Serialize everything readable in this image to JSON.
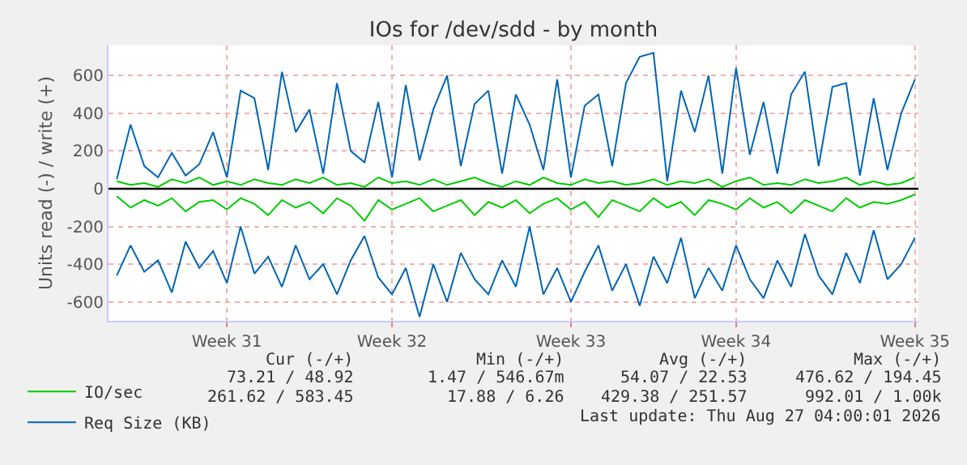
{
  "chart_data": {
    "type": "line",
    "title": "IOs for /dev/sdd - by month",
    "ylabel": "Units read (-) / write (+)",
    "categories": [
      null,
      null,
      null,
      null,
      null,
      null,
      null,
      null,
      "Week 31",
      null,
      null,
      null,
      null,
      null,
      null,
      null,
      null,
      null,
      null,
      null,
      "Week 32",
      null,
      null,
      null,
      null,
      null,
      null,
      null,
      null,
      null,
      null,
      null,
      null,
      "Week 33",
      null,
      null,
      null,
      null,
      null,
      null,
      null,
      null,
      null,
      null,
      null,
      "Week 34",
      null,
      null,
      null,
      null,
      null,
      null,
      null,
      null,
      null,
      null,
      null,
      null,
      "Week 35"
    ],
    "series": [
      {
        "color": "#0066b3",
        "values": [
          -460,
          -300,
          -440,
          -380,
          -550,
          -280,
          -420,
          -330,
          -500,
          -200,
          -450,
          -360,
          -520,
          -300,
          -480,
          -400,
          -560,
          -380,
          -250,
          -470,
          -560,
          -420,
          -680,
          -400,
          -600,
          -340,
          -480,
          -560,
          -380,
          -520,
          -200,
          -560,
          -420,
          -600,
          -440,
          -300,
          -540,
          -400,
          -620,
          -360,
          -500,
          -260,
          -580,
          -420,
          -540,
          -300,
          -480,
          -580,
          -380,
          -520,
          -240,
          -460,
          -560,
          -340,
          -500,
          -220,
          -480,
          -400,
          -260
        ]
      },
      {
        "name": "Req Size (KB)",
        "color": "#0066b3",
        "values": [
          50,
          340,
          120,
          60,
          190,
          70,
          130,
          300,
          60,
          520,
          480,
          100,
          620,
          300,
          420,
          80,
          560,
          200,
          140,
          460,
          60,
          550,
          150,
          420,
          600,
          120,
          450,
          520,
          80,
          500,
          340,
          100,
          580,
          60,
          440,
          500,
          120,
          560,
          700,
          720,
          40,
          520,
          300,
          600,
          80,
          640,
          180,
          460,
          80,
          500,
          620,
          120,
          540,
          560,
          70,
          480,
          100,
          400,
          580
        ]
      },
      {
        "color": "#00cc00",
        "values": [
          -40,
          -100,
          -60,
          -90,
          -50,
          -120,
          -70,
          -60,
          -110,
          -50,
          -80,
          -140,
          -60,
          -100,
          -70,
          -130,
          -50,
          -90,
          -170,
          -60,
          -110,
          -80,
          -50,
          -120,
          -90,
          -60,
          -140,
          -70,
          -100,
          -60,
          -130,
          -80,
          -50,
          -110,
          -70,
          -150,
          -60,
          -90,
          -120,
          -50,
          -100,
          -70,
          -140,
          -60,
          -80,
          -110,
          -50,
          -100,
          -70,
          -130,
          -60,
          -90,
          -120,
          -50,
          -100,
          -70,
          -80,
          -60,
          -30
        ]
      },
      {
        "name": "IO/sec",
        "color": "#00cc00",
        "values": [
          40,
          20,
          30,
          10,
          50,
          30,
          60,
          20,
          40,
          20,
          50,
          30,
          20,
          50,
          30,
          60,
          20,
          30,
          10,
          60,
          30,
          40,
          20,
          50,
          20,
          40,
          60,
          30,
          10,
          40,
          20,
          60,
          30,
          20,
          50,
          30,
          40,
          20,
          30,
          50,
          20,
          40,
          30,
          50,
          10,
          40,
          60,
          20,
          30,
          20,
          50,
          30,
          40,
          60,
          20,
          40,
          20,
          30,
          60
        ]
      }
    ],
    "ylim": [
      -700,
      760
    ],
    "yticks": [
      -600,
      -400,
      -200,
      0,
      200,
      400,
      600
    ],
    "ref_lines": [
      {
        "axis": "y",
        "value": 0,
        "color": "#000000"
      }
    ],
    "grid": true,
    "legend": "bottom left",
    "marker": "none",
    "line_style": "solid",
    "annotations": [
      "Cur (-/+)",
      "Min (-/+)",
      "Avg (-/+)",
      "Max (-/+)",
      "73.21 / 48.92",
      "1.47 / 546.67m",
      "54.07 / 22.53",
      "476.62 / 194.45",
      "261.62 / 583.45",
      "17.88 / 6.26",
      "429.38 / 251.57",
      "992.01 / 1.00k",
      "Last update: Thu Aug 27 04:00:01 2026"
    ]
  }
}
